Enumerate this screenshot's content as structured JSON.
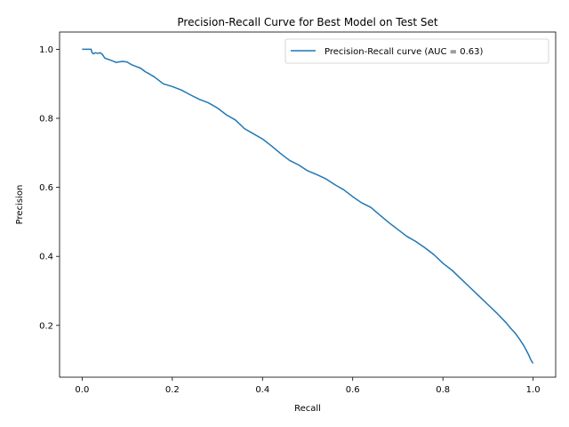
{
  "chart_data": {
    "type": "line",
    "title": "Precision-Recall Curve for Best Model on Test Set",
    "xlabel": "Recall",
    "ylabel": "Precision",
    "xlim": [
      -0.05,
      1.05
    ],
    "ylim": [
      0.05,
      1.05
    ],
    "xticks": [
      0.0,
      0.2,
      0.4,
      0.6,
      0.8,
      1.0
    ],
    "xtick_labels": [
      "0.0",
      "0.2",
      "0.4",
      "0.6",
      "0.8",
      "1.0"
    ],
    "yticks": [
      0.2,
      0.4,
      0.6,
      0.8,
      1.0
    ],
    "ytick_labels": [
      "0.2",
      "0.4",
      "0.6",
      "0.8",
      "1.0"
    ],
    "grid": false,
    "legend_position": "top-right",
    "series": [
      {
        "name": "Precision-Recall curve (AUC = 0.63)",
        "color": "#1f77b4",
        "x": [
          0.0,
          0.02,
          0.022,
          0.025,
          0.03,
          0.035,
          0.04,
          0.045,
          0.05,
          0.055,
          0.06,
          0.07,
          0.075,
          0.08,
          0.09,
          0.1,
          0.11,
          0.12,
          0.13,
          0.14,
          0.15,
          0.16,
          0.17,
          0.18,
          0.2,
          0.22,
          0.24,
          0.26,
          0.28,
          0.3,
          0.32,
          0.34,
          0.36,
          0.38,
          0.4,
          0.42,
          0.44,
          0.46,
          0.48,
          0.5,
          0.52,
          0.54,
          0.56,
          0.58,
          0.6,
          0.62,
          0.64,
          0.66,
          0.68,
          0.7,
          0.72,
          0.74,
          0.76,
          0.78,
          0.8,
          0.82,
          0.84,
          0.86,
          0.88,
          0.9,
          0.92,
          0.94,
          0.95,
          0.96,
          0.97,
          0.98,
          0.99,
          0.995,
          1.0
        ],
        "y": [
          1.0,
          1.0,
          0.99,
          0.987,
          0.99,
          0.988,
          0.99,
          0.985,
          0.975,
          0.972,
          0.97,
          0.965,
          0.962,
          0.963,
          0.965,
          0.963,
          0.955,
          0.95,
          0.945,
          0.935,
          0.928,
          0.92,
          0.91,
          0.9,
          0.892,
          0.882,
          0.868,
          0.855,
          0.845,
          0.83,
          0.81,
          0.795,
          0.77,
          0.755,
          0.74,
          0.72,
          0.698,
          0.678,
          0.665,
          0.648,
          0.637,
          0.625,
          0.608,
          0.593,
          0.573,
          0.555,
          0.542,
          0.52,
          0.498,
          0.478,
          0.458,
          0.443,
          0.425,
          0.405,
          0.38,
          0.36,
          0.335,
          0.31,
          0.285,
          0.26,
          0.235,
          0.208,
          0.192,
          0.178,
          0.16,
          0.14,
          0.115,
          0.1,
          0.09
        ]
      }
    ]
  }
}
